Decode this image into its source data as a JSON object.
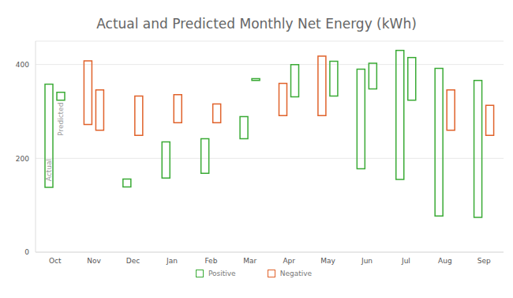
{
  "chart_data": {
    "type": "bar",
    "title": "Actual and Predicted Monthly Net Energy (kWh)",
    "categories": [
      "Oct",
      "Nov",
      "Dec",
      "Jan",
      "Feb",
      "Mar",
      "Apr",
      "May",
      "Jun",
      "Jul",
      "Aug",
      "Sep"
    ],
    "series": [
      {
        "name": "Actual",
        "values": [
          [
            138,
            358
          ],
          [
            272,
            408
          ],
          [
            139,
            156
          ],
          [
            158,
            235
          ],
          [
            168,
            242
          ],
          [
            242,
            289
          ],
          [
            291,
            360
          ],
          [
            291,
            418
          ],
          [
            178,
            390
          ],
          [
            155,
            430
          ],
          [
            77,
            392
          ],
          [
            74,
            366
          ]
        ],
        "colors": [
          "#3aaa35",
          "#e0622a",
          "#3aaa35",
          "#3aaa35",
          "#3aaa35",
          "#3aaa35",
          "#e0622a",
          "#e0622a",
          "#3aaa35",
          "#3aaa35",
          "#3aaa35",
          "#3aaa35"
        ]
      },
      {
        "name": "Predicted",
        "values": [
          [
            324,
            341
          ],
          [
            260,
            346
          ],
          [
            249,
            333
          ],
          [
            276,
            336
          ],
          [
            276,
            316
          ],
          [
            366,
            370
          ],
          [
            331,
            400
          ],
          [
            333,
            407
          ],
          [
            348,
            403
          ],
          [
            324,
            415
          ],
          [
            260,
            346
          ],
          [
            249,
            313
          ]
        ],
        "colors": [
          "#3aaa35",
          "#e0622a",
          "#e0622a",
          "#e0622a",
          "#e0622a",
          "#3aaa35",
          "#3aaa35",
          "#3aaa35",
          "#3aaa35",
          "#3aaa35",
          "#e0622a",
          "#e0622a"
        ]
      }
    ],
    "legend_items": [
      {
        "name": "Positive",
        "color": "#3aaa35"
      },
      {
        "name": "Negative",
        "color": "#e0622a"
      }
    ],
    "ylim": [
      0,
      450
    ],
    "yticks": [
      0,
      200,
      400
    ],
    "grid": true,
    "legend": "bottom"
  }
}
